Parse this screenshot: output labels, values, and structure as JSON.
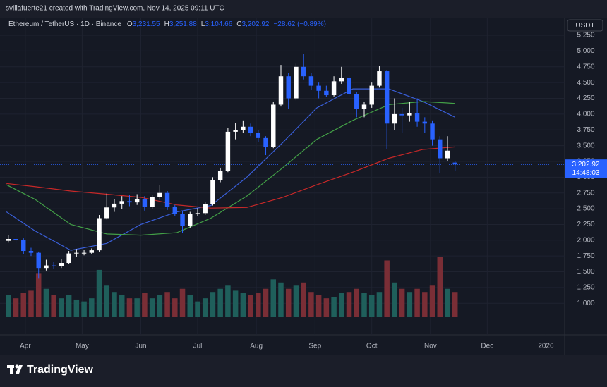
{
  "header": {
    "attribution": "svillafuerte21 created with TradingView.com, Nov 14, 2025 09:11 UTC",
    "symbol": "Ethereum / TetherUS · 1D · Binance",
    "letters": [
      "O",
      "H",
      "L",
      "C"
    ],
    "values": [
      "3,231.55",
      "3,251.88",
      "3,104.66",
      "3,202.92"
    ],
    "change": "−28.62 (−0.89%)",
    "currency": "USDT"
  },
  "footer": {
    "brand": "TradingView"
  },
  "chart_data": {
    "type": "candlestick",
    "x": [
      -9,
      -5,
      -1,
      3,
      7,
      11,
      15,
      19,
      23,
      27,
      31,
      35,
      39,
      43,
      47,
      51,
      55,
      59,
      63,
      67,
      71,
      75,
      79,
      83,
      87,
      91,
      95,
      99,
      103,
      107,
      111,
      115,
      119,
      123,
      127,
      131,
      135,
      139,
      143,
      147,
      151,
      155,
      159,
      163,
      167,
      171,
      175,
      179,
      183,
      187,
      191,
      195,
      199,
      203,
      207,
      211,
      215,
      219,
      223,
      227
    ],
    "open": [
      1990,
      2020,
      2000,
      1830,
      1800,
      1560,
      1600,
      1590,
      1640,
      1790,
      1800,
      1800,
      1840,
      2350,
      2520,
      2580,
      2620,
      2600,
      2650,
      2530,
      2680,
      2750,
      2530,
      2420,
      2230,
      2420,
      2430,
      2570,
      2950,
      3100,
      3720,
      3750,
      3800,
      3700,
      3620,
      3480,
      4150,
      4600,
      4250,
      4750,
      4600,
      4450,
      4370,
      4300,
      4520,
      4580,
      4320,
      4080,
      4150,
      4450,
      4680,
      3850,
      4000,
      3980,
      4020,
      3880,
      3850,
      3600,
      3300,
      3231.55
    ],
    "high": [
      2080,
      2100,
      2030,
      1880,
      1820,
      1690,
      1660,
      1700,
      1830,
      1860,
      1850,
      1870,
      2400,
      2740,
      2650,
      2700,
      2720,
      2730,
      2700,
      2720,
      2880,
      2780,
      2560,
      2460,
      2450,
      2510,
      2600,
      3000,
      3150,
      3780,
      3860,
      3900,
      3850,
      3750,
      3650,
      4200,
      4780,
      4650,
      4800,
      4950,
      4650,
      4500,
      4450,
      4600,
      4750,
      4600,
      4350,
      4200,
      4500,
      4760,
      4700,
      4250,
      4100,
      4200,
      4250,
      3950,
      3900,
      3650,
      3650,
      3251.88
    ],
    "low": [
      1960,
      1950,
      1780,
      1750,
      1390,
      1520,
      1540,
      1560,
      1620,
      1740,
      1760,
      1780,
      1820,
      2330,
      2450,
      2500,
      2540,
      2560,
      2470,
      2490,
      2640,
      2480,
      2380,
      2120,
      2200,
      2380,
      2400,
      2550,
      2920,
      3080,
      3600,
      3700,
      3650,
      3560,
      3350,
      3460,
      4120,
      4080,
      4220,
      4550,
      4380,
      4250,
      4270,
      4280,
      4480,
      4280,
      3950,
      3950,
      4100,
      4420,
      3450,
      3750,
      3700,
      3880,
      3800,
      3700,
      3500,
      3060,
      3250,
      3104.66
    ],
    "close": [
      2020,
      2000,
      1830,
      1800,
      1560,
      1600,
      1590,
      1640,
      1790,
      1800,
      1800,
      1840,
      2350,
      2520,
      2580,
      2620,
      2600,
      2650,
      2530,
      2680,
      2750,
      2530,
      2420,
      2230,
      2420,
      2430,
      2570,
      2950,
      3100,
      3720,
      3750,
      3800,
      3700,
      3620,
      3480,
      4150,
      4600,
      4250,
      4750,
      4600,
      4450,
      4370,
      4300,
      4520,
      4580,
      4320,
      4080,
      4150,
      4450,
      4680,
      3850,
      4000,
      3980,
      4020,
      3880,
      3850,
      3600,
      3300,
      3420,
      3202.92
    ],
    "volume": [
      35,
      30,
      38,
      42,
      70,
      45,
      35,
      30,
      35,
      28,
      25,
      30,
      75,
      50,
      40,
      35,
      30,
      30,
      38,
      30,
      35,
      40,
      30,
      45,
      35,
      25,
      30,
      40,
      45,
      50,
      42,
      38,
      35,
      38,
      45,
      60,
      55,
      45,
      50,
      55,
      40,
      35,
      30,
      32,
      38,
      40,
      45,
      38,
      35,
      40,
      90,
      55,
      45,
      40,
      45,
      40,
      50,
      95,
      45,
      40
    ],
    "up_color": "#ffffff",
    "down_color": "#2962ff",
    "volume_up_color": "#1f5f5b",
    "volume_down_color": "#7a2e36",
    "last_price_label": "3,202.92",
    "countdown": "14:48:03",
    "series": [
      {
        "color": "#3a5fd9",
        "x": [
          -10,
          5,
          24,
          43,
          61,
          80,
          98,
          117,
          136,
          154,
          173,
          192,
          210,
          227
        ],
        "values": [
          2450,
          2150,
          1840,
          1950,
          2250,
          2450,
          2550,
          3000,
          3550,
          4100,
          4400,
          4400,
          4200,
          3950
        ]
      },
      {
        "color": "#43a047",
        "x": [
          -10,
          5,
          24,
          43,
          61,
          80,
          98,
          117,
          136,
          154,
          173,
          192,
          210,
          227
        ],
        "values": [
          2880,
          2650,
          2250,
          2100,
          2080,
          2120,
          2350,
          2700,
          3150,
          3600,
          3900,
          4150,
          4200,
          4170
        ]
      },
      {
        "color": "#c62828",
        "x": [
          -10,
          5,
          24,
          43,
          61,
          80,
          98,
          117,
          136,
          154,
          173,
          192,
          210,
          227
        ],
        "values": [
          2900,
          2850,
          2780,
          2730,
          2680,
          2560,
          2510,
          2520,
          2680,
          2880,
          3080,
          3300,
          3440,
          3480
        ]
      }
    ],
    "xlim": [
      -13.4,
      284.9
    ],
    "xticks": [
      {
        "value": 0,
        "label": "Apr"
      },
      {
        "value": 30,
        "label": "May"
      },
      {
        "value": 61,
        "label": "Jun"
      },
      {
        "value": 91,
        "label": "Jul"
      },
      {
        "value": 122,
        "label": "Aug"
      },
      {
        "value": 153,
        "label": "Sep"
      },
      {
        "value": 183,
        "label": "Oct"
      },
      {
        "value": 214,
        "label": "Nov"
      },
      {
        "value": 244,
        "label": "Dec"
      },
      {
        "value": 275,
        "label": "2026"
      }
    ],
    "ylim": [
      500,
      5530
    ],
    "yticks": [
      {
        "value": 1000,
        "label": "1,000"
      },
      {
        "value": 1250,
        "label": "1,250"
      },
      {
        "value": 1500,
        "label": "1,500"
      },
      {
        "value": 1750,
        "label": "1,750"
      },
      {
        "value": 2000,
        "label": "2,000"
      },
      {
        "value": 2250,
        "label": "2,250"
      },
      {
        "value": 2500,
        "label": "2,500"
      },
      {
        "value": 2750,
        "label": "2,750"
      },
      {
        "value": 3000,
        "label": "3,000"
      },
      {
        "value": 3250,
        "label": "3,250"
      },
      {
        "value": 3500,
        "label": "3,500"
      },
      {
        "value": 3750,
        "label": "3,750"
      },
      {
        "value": 4000,
        "label": "4,000"
      },
      {
        "value": 4250,
        "label": "4,250"
      },
      {
        "value": 4500,
        "label": "4,500"
      },
      {
        "value": 4750,
        "label": "4,750"
      },
      {
        "value": 5000,
        "label": "5,000"
      },
      {
        "value": 5250,
        "label": "5,250"
      }
    ],
    "grid": true
  }
}
